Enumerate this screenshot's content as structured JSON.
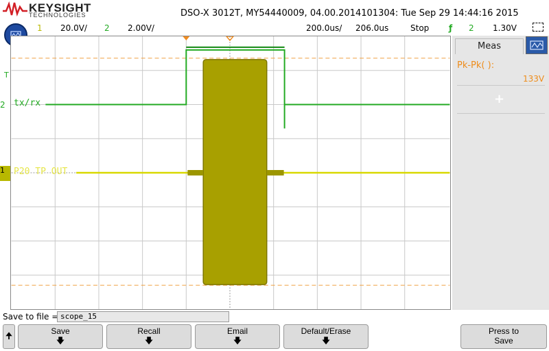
{
  "header": {
    "brand": "KEYSIGHT",
    "brand_sub": "TECHNOLOGIES",
    "scope_info": "DSO-X 3012T, MY54440009, 04.00.2014101304: Tue Sep 29 14:44:16 2015"
  },
  "status_bar": {
    "ch1_number": "1",
    "ch1_scale": "20.0V/",
    "ch2_number": "2",
    "ch2_scale": "2.00V/",
    "timebase": "200.0us/",
    "delay": "206.0us",
    "run_state": "Stop",
    "trigger_icon": "ƒ",
    "trigger_source": "2",
    "trigger_level": "1.30V"
  },
  "markers": {
    "trigger_marker": "T",
    "ch2_marker": "2",
    "ch1_marker": "1"
  },
  "traces": {
    "ch2_label": "tx/rx",
    "ch1_label": "P20 TP OUT",
    "ch1_color": "#e6e64a",
    "ch2_color": "#22aa22"
  },
  "side_panel": {
    "tab_label": "Meas",
    "measurement_label": "Pk-Pk( ):",
    "measurement_value": "133V",
    "add_symbol": "+"
  },
  "save_bar": {
    "label": "Save to file =",
    "filename": "scope_15"
  },
  "softkeys": {
    "up_arrow": "🠉",
    "save": "Save",
    "recall": "Recall",
    "email": "Email",
    "default_erase": "Default/Erase",
    "press_to": "Press to",
    "press_save": "Save",
    "down_arrow": "🡇"
  }
}
